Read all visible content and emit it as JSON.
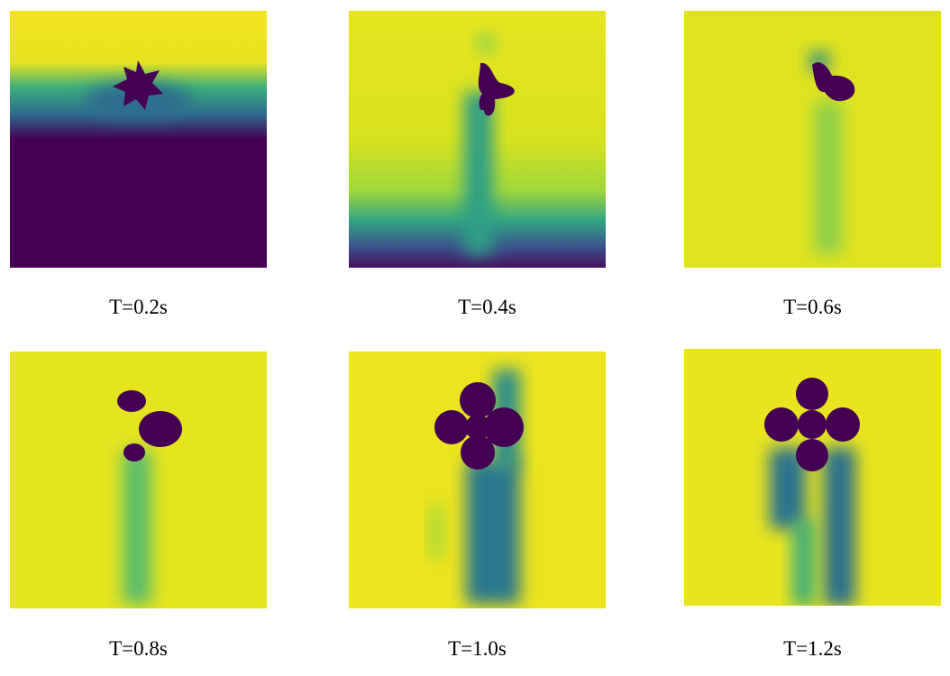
{
  "figure": {
    "panels": [
      {
        "caption": "T=0.2s"
      },
      {
        "caption": "T=0.4s"
      },
      {
        "caption": "T=0.6s"
      },
      {
        "caption": "T=0.8s"
      },
      {
        "caption": "T=1.0s"
      },
      {
        "caption": "T=1.2s"
      }
    ]
  }
}
